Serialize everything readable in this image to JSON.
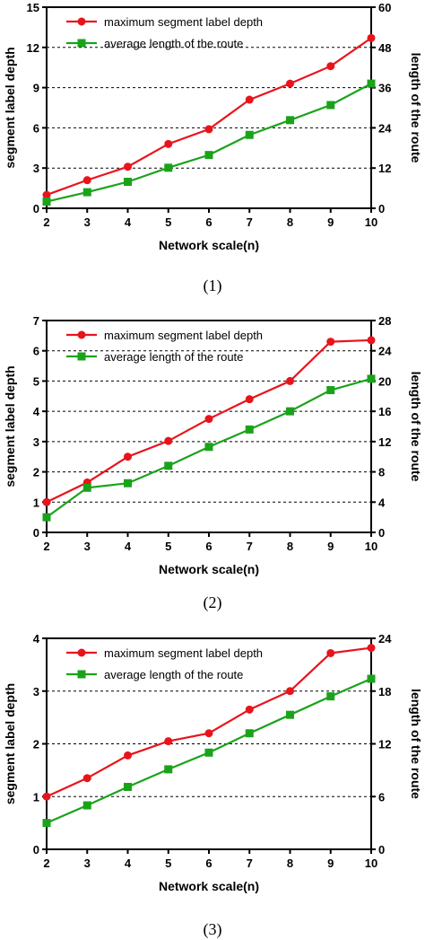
{
  "chart_data": [
    {
      "type": "line",
      "caption": "(1)",
      "xlabel": "Network scale(n)",
      "ylabel": "segment label depth",
      "y2label": "length of the route",
      "x": [
        2,
        3,
        4,
        5,
        6,
        7,
        8,
        9,
        10
      ],
      "xlim": [
        2,
        10
      ],
      "ylim": [
        0,
        15
      ],
      "yticks": [
        0,
        3,
        6,
        9,
        12,
        15
      ],
      "y2lim": [
        0,
        60
      ],
      "y2ticks": [
        0,
        12,
        24,
        36,
        48,
        60
      ],
      "grid": "dashed horizontal",
      "legend_position": "top-left",
      "series": [
        {
          "name": "maximum segment label depth",
          "axis": "left",
          "color": "#e8141c",
          "marker": "circle",
          "values": [
            1.0,
            2.1,
            3.1,
            4.8,
            5.9,
            8.1,
            9.3,
            10.6,
            12.7
          ]
        },
        {
          "name": "average length of the route",
          "axis": "right",
          "color": "#1aa31a",
          "marker": "square",
          "values": [
            2.0,
            4.8,
            7.9,
            12.1,
            15.9,
            21.9,
            26.3,
            30.8,
            37.2
          ]
        }
      ]
    },
    {
      "type": "line",
      "caption": "(2)",
      "xlabel": "Network scale(n)",
      "ylabel": "segment label depth",
      "y2label": "length of the route",
      "x": [
        2,
        3,
        4,
        5,
        6,
        7,
        8,
        9,
        10
      ],
      "xlim": [
        2,
        10
      ],
      "ylim": [
        0,
        7
      ],
      "yticks": [
        0,
        1,
        2,
        3,
        4,
        5,
        6,
        7
      ],
      "y2lim": [
        0,
        28
      ],
      "y2ticks": [
        0,
        4,
        8,
        12,
        16,
        20,
        24,
        28
      ],
      "grid": "dashed horizontal",
      "legend_position": "top-left",
      "series": [
        {
          "name": "maximum segment label depth",
          "axis": "left",
          "color": "#e8141c",
          "marker": "circle",
          "values": [
            1.0,
            1.65,
            2.5,
            3.02,
            3.75,
            4.4,
            5.0,
            6.3,
            6.35
          ]
        },
        {
          "name": "average length of the route",
          "axis": "right",
          "color": "#1aa31a",
          "marker": "square",
          "values": [
            2.0,
            5.9,
            6.5,
            8.8,
            11.3,
            13.6,
            16.0,
            18.8,
            20.3
          ]
        }
      ]
    },
    {
      "type": "line",
      "caption": "(3)",
      "xlabel": "Network scale(n)",
      "ylabel": "segment label depth",
      "y2label": "length of the route",
      "x": [
        2,
        3,
        4,
        5,
        6,
        7,
        8,
        9,
        10
      ],
      "xlim": [
        2,
        10
      ],
      "ylim": [
        0,
        4
      ],
      "yticks": [
        0,
        1,
        2,
        3,
        4
      ],
      "y2lim": [
        0,
        24
      ],
      "y2ticks": [
        0,
        6,
        12,
        18,
        24
      ],
      "grid": "dashed horizontal",
      "legend_position": "top-left",
      "series": [
        {
          "name": "maximum segment label depth",
          "axis": "left",
          "color": "#e8141c",
          "marker": "circle",
          "values": [
            1.0,
            1.35,
            1.78,
            2.05,
            2.2,
            2.65,
            3.0,
            3.72,
            3.82
          ]
        },
        {
          "name": "average length of the route",
          "axis": "right",
          "color": "#1aa31a",
          "marker": "square",
          "values": [
            3.0,
            5.0,
            7.1,
            9.1,
            11.0,
            13.2,
            15.3,
            17.4,
            19.4
          ]
        }
      ]
    }
  ]
}
